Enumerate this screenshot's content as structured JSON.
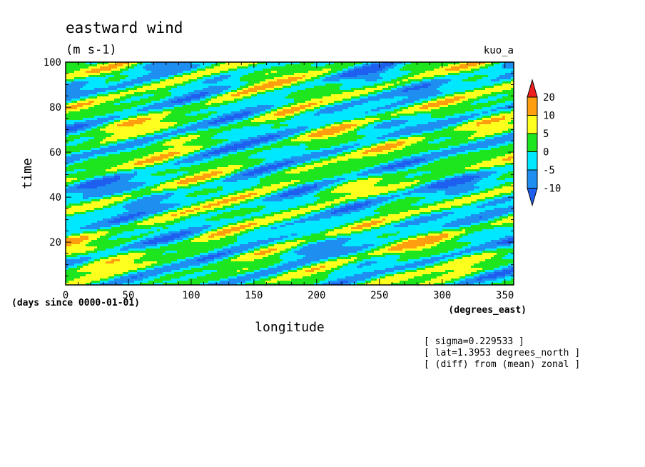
{
  "chart_data": {
    "type": "heatmap",
    "title": "eastward wind",
    "subtitle": "(m s-1)",
    "tag": "kuo_a",
    "xlabel": "longitude",
    "ylabel": "time",
    "x_units": "(degrees_east)",
    "y_units": "(days since 0000-01-01)",
    "xlim": [
      0,
      357
    ],
    "ylim": [
      1,
      100
    ],
    "x_ticks": [
      0,
      50,
      100,
      150,
      200,
      250,
      300,
      350
    ],
    "y_ticks": [
      20,
      40,
      60,
      80,
      100
    ],
    "grid": false,
    "legend": "right",
    "notes": [
      "[ sigma=0.229533 ]",
      "[ lat=1.3953 degrees_north ]",
      "[ (diff) from (mean) zonal ]"
    ],
    "colorbar": {
      "levels": [
        -10,
        -5,
        0,
        5,
        10,
        20
      ],
      "colors": [
        "#1e5ff0",
        "#1e8ff0",
        "#00e8ff",
        "#1ee61e",
        "#ffff1e",
        "#ff9f0f",
        "#ee1e1e"
      ]
    }
  }
}
